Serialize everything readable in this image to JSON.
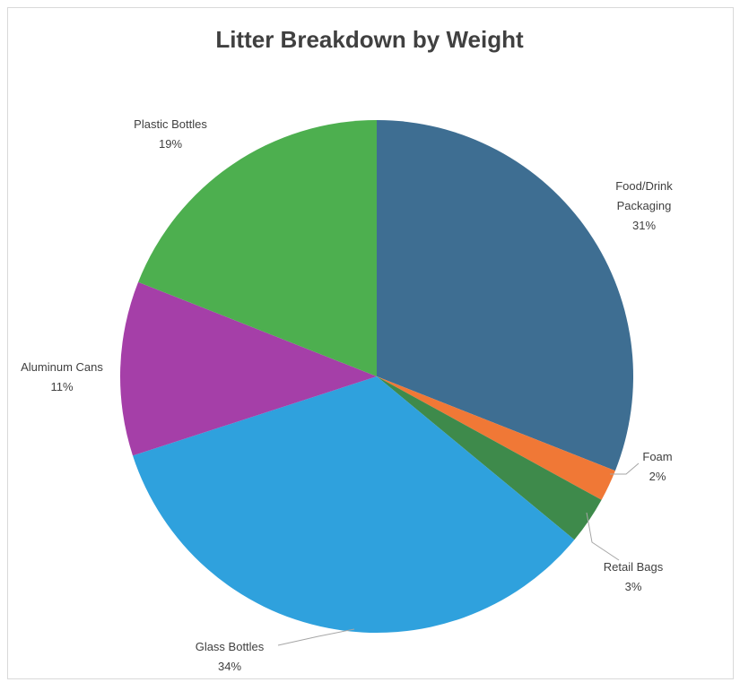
{
  "chart_data": {
    "type": "pie",
    "title": "Litter Breakdown by Weight",
    "slices": [
      {
        "name": "Food/Drink Packaging",
        "label_lines": [
          "Food/Drink",
          "Packaging"
        ],
        "value": 31,
        "pct_label": "31%",
        "color": "#3E6E92"
      },
      {
        "name": "Foam",
        "label_lines": [
          "Foam"
        ],
        "value": 2,
        "pct_label": "2%",
        "color": "#F07836"
      },
      {
        "name": "Retail Bags",
        "label_lines": [
          "Retail Bags"
        ],
        "value": 3,
        "pct_label": "3%",
        "color": "#3E8A4B"
      },
      {
        "name": "Glass Bottles",
        "label_lines": [
          "Glass Bottles"
        ],
        "value": 34,
        "pct_label": "34%",
        "color": "#2FA1DD"
      },
      {
        "name": "Aluminum Cans",
        "label_lines": [
          "Aluminum Cans"
        ],
        "value": 11,
        "pct_label": "11%",
        "color": "#A53FA8"
      },
      {
        "name": "Plastic Bottles",
        "label_lines": [
          "Plastic Bottles"
        ],
        "value": 19,
        "pct_label": "19%",
        "color": "#4DAF4F"
      }
    ],
    "start_angle_deg": 0,
    "direction": "clockwise",
    "legend": "none",
    "data_labels": "category name and percentage, outside end with leader lines"
  }
}
